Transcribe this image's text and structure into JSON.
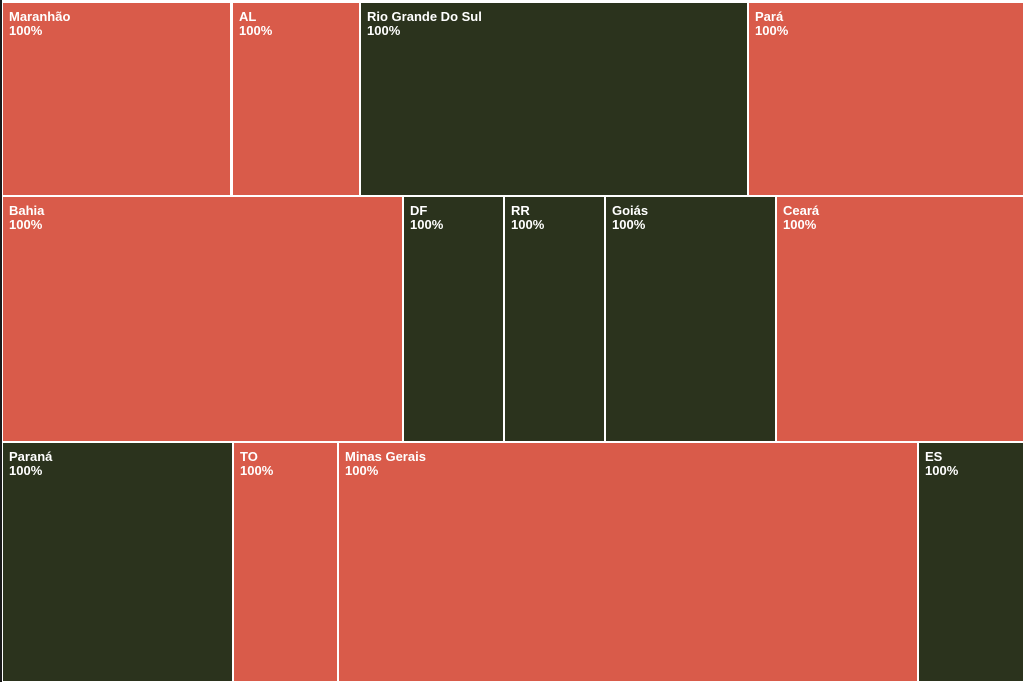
{
  "colors": {
    "red": "#d95b4a",
    "dark": "#2b331d",
    "divider": "#ffffff"
  },
  "tiles": [
    {
      "name": "Maranhão",
      "value": "100%",
      "color": "red"
    },
    {
      "name": "AL",
      "value": "100%",
      "color": "red"
    },
    {
      "name": "Rio Grande Do Sul",
      "value": "100%",
      "color": "dark"
    },
    {
      "name": "Pará",
      "value": "100%",
      "color": "red"
    },
    {
      "name": "Bahia",
      "value": "100%",
      "color": "red"
    },
    {
      "name": "DF",
      "value": "100%",
      "color": "dark"
    },
    {
      "name": "RR",
      "value": "100%",
      "color": "dark"
    },
    {
      "name": "Goiás",
      "value": "100%",
      "color": "dark"
    },
    {
      "name": "Ceará",
      "value": "100%",
      "color": "red"
    },
    {
      "name": "Paraná",
      "value": "100%",
      "color": "dark"
    },
    {
      "name": "TO",
      "value": "100%",
      "color": "red"
    },
    {
      "name": "Minas Gerais",
      "value": "100%",
      "color": "red"
    },
    {
      "name": "ES",
      "value": "100%",
      "color": "dark"
    }
  ]
}
